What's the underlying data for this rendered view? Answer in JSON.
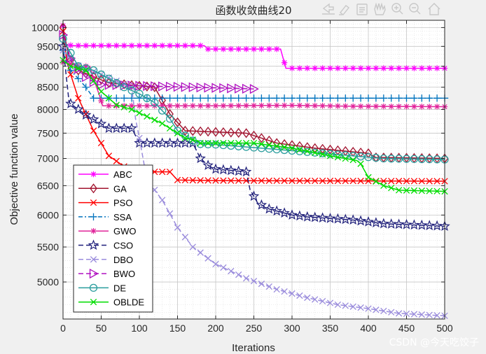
{
  "window": {
    "background": "#f0f0f0"
  },
  "toolbar": {
    "icons": [
      "export-icon",
      "brush-icon",
      "data-tip-icon",
      "pan-icon",
      "zoom-in-icon",
      "zoom-out-icon",
      "home-icon"
    ]
  },
  "watermark": "CSDN @今天吃饺子",
  "chart_data": {
    "type": "line",
    "title": "函数收敛曲线20",
    "xlabel": "Iterations",
    "ylabel": "Objective function value",
    "xlim": [
      0,
      500
    ],
    "ylim": [
      4520,
      10200
    ],
    "yscale": "log",
    "grid": true,
    "minor_grid": true,
    "legend_position": "bottom-left",
    "xticks": [
      0,
      50,
      100,
      150,
      200,
      250,
      300,
      350,
      400,
      450,
      500
    ],
    "yticks": [
      5000,
      5500,
      6000,
      6500,
      7000,
      7500,
      8000,
      8500,
      9000,
      9500,
      10000
    ],
    "series": [
      {
        "name": "ABC",
        "color": "#ff00ff",
        "dash": "",
        "marker": "asterisk",
        "x": [
          0,
          3,
          8,
          15,
          185,
          190,
          285,
          292,
          500
        ],
        "y": [
          10050,
          9550,
          9530,
          9520,
          9520,
          9430,
          9430,
          8950,
          8950
        ]
      },
      {
        "name": "GA",
        "color": "#a2142f",
        "dash": "",
        "marker": "diamond",
        "x": [
          0,
          8,
          20,
          60,
          120,
          140,
          160,
          240,
          280,
          330,
          400,
          410,
          500
        ],
        "y": [
          10000,
          9200,
          8900,
          8600,
          8500,
          7900,
          7550,
          7500,
          7300,
          7200,
          7100,
          7020,
          7000
        ]
      },
      {
        "name": "PSO",
        "color": "#ff0000",
        "dash": "",
        "marker": "x",
        "x": [
          0,
          5,
          10,
          20,
          40,
          60,
          80,
          100,
          140,
          150,
          210,
          500
        ],
        "y": [
          9900,
          9100,
          8800,
          8250,
          7550,
          7050,
          6850,
          6750,
          6750,
          6600,
          6590,
          6580
        ]
      },
      {
        "name": "SSA",
        "color": "#0072bd",
        "dash": "6,3,2,3",
        "marker": "plus",
        "x": [
          0,
          5,
          10,
          20,
          30,
          40,
          500
        ],
        "y": [
          9400,
          9050,
          8900,
          8700,
          8500,
          8250,
          8250
        ]
      },
      {
        "name": "GWO",
        "color": "#e0249a",
        "dash": "",
        "marker": "asterisk",
        "x": [
          0,
          20,
          35,
          40,
          48,
          52,
          200,
          300,
          380,
          500
        ],
        "y": [
          9100,
          9000,
          9000,
          8700,
          8300,
          8080,
          8080,
          8090,
          8070,
          8060
        ]
      },
      {
        "name": "CSO",
        "color": "#1f1f7a",
        "dash": "7,4",
        "marker": "star",
        "x": [
          0,
          8,
          30,
          60,
          90,
          100,
          170,
          180,
          190,
          200,
          240,
          245,
          255,
          270,
          300,
          320,
          380,
          420,
          500
        ],
        "y": [
          9500,
          8150,
          7880,
          7600,
          7600,
          7300,
          7300,
          7000,
          6870,
          6800,
          6750,
          6430,
          6200,
          6100,
          6000,
          5970,
          5920,
          5860,
          5820
        ]
      },
      {
        "name": "DBO",
        "color": "#9a8cdc",
        "dash": "7,4",
        "marker": "x",
        "x": [
          0,
          15,
          50,
          90,
          95,
          100,
          110,
          130,
          150,
          170,
          200,
          240,
          280,
          320,
          360,
          400,
          440,
          500
        ],
        "y": [
          9400,
          9050,
          8800,
          8500,
          7800,
          7400,
          6600,
          6250,
          5800,
          5500,
          5250,
          5050,
          4900,
          4790,
          4700,
          4650,
          4590,
          4560
        ]
      },
      {
        "name": "BWO",
        "color": "#b010c0",
        "dash": "7,4",
        "marker": "triangle",
        "x": [
          0,
          10,
          25,
          45,
          250
        ],
        "y": [
          9800,
          9200,
          8800,
          8560,
          8460
        ]
      },
      {
        "name": "DE",
        "color": "#2a9d9d",
        "dash": "",
        "marker": "circle",
        "x": [
          0,
          5,
          20,
          40,
          60,
          80,
          100,
          120,
          140,
          150,
          170,
          180,
          200,
          260,
          300,
          380,
          420,
          500
        ],
        "y": [
          9700,
          9500,
          9000,
          8900,
          8700,
          8500,
          8350,
          8150,
          7800,
          7550,
          7350,
          7280,
          7270,
          7200,
          7150,
          7050,
          7000,
          6980
        ]
      },
      {
        "name": "OBLDE",
        "color": "#00dd00",
        "dash": "",
        "marker": "x",
        "x": [
          0,
          10,
          30,
          50,
          70,
          90,
          130,
          160,
          175,
          180,
          250,
          300,
          350,
          385,
          390,
          400,
          420,
          440,
          500
        ],
        "y": [
          9150,
          9000,
          8900,
          8400,
          8100,
          8000,
          7700,
          7400,
          7350,
          7300,
          7300,
          7200,
          7050,
          6960,
          6900,
          6650,
          6500,
          6420,
          6400
        ]
      }
    ]
  }
}
